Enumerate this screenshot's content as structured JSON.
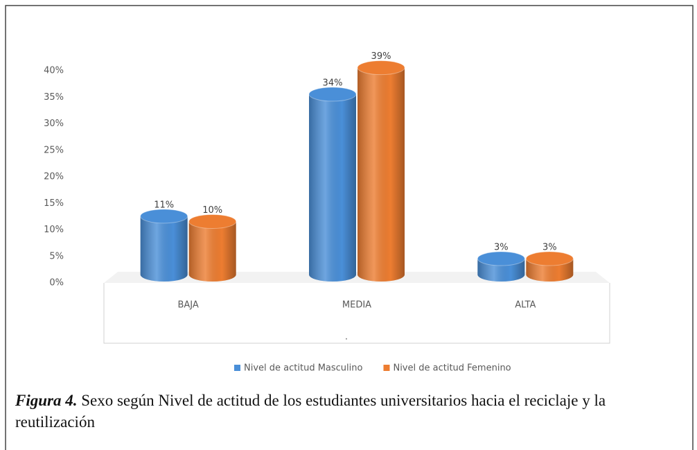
{
  "chart_data": {
    "type": "bar3d",
    "categories": [
      "BAJA",
      "MEDIA",
      "ALTA"
    ],
    "series": [
      {
        "name": "Nivel de actitud Masculino",
        "color": "#4a8fd8",
        "values": [
          11,
          34,
          3
        ],
        "value_labels": [
          "11%",
          "34%",
          "3%"
        ]
      },
      {
        "name": "Nivel de actitud Femenino",
        "color": "#ed7d31",
        "values": [
          10,
          39,
          3
        ],
        "value_labels": [
          "10%",
          "39%",
          "3%"
        ]
      }
    ],
    "ylim": [
      0,
      40
    ],
    "yticks": [
      {
        "value": 0,
        "label": "0%"
      },
      {
        "value": 5,
        "label": "5%"
      },
      {
        "value": 10,
        "label": "10%"
      },
      {
        "value": 15,
        "label": "15%"
      },
      {
        "value": 20,
        "label": "20%"
      },
      {
        "value": 25,
        "label": "25%"
      },
      {
        "value": 30,
        "label": "30%"
      },
      {
        "value": 35,
        "label": "35%"
      },
      {
        "value": 40,
        "label": "40%"
      }
    ],
    "grid": false
  },
  "caption": {
    "label": "Figura 4.",
    "text": "Sexo según Nivel de actitud de los estudiantes universitarios hacia el reciclaje y la reutilización"
  }
}
